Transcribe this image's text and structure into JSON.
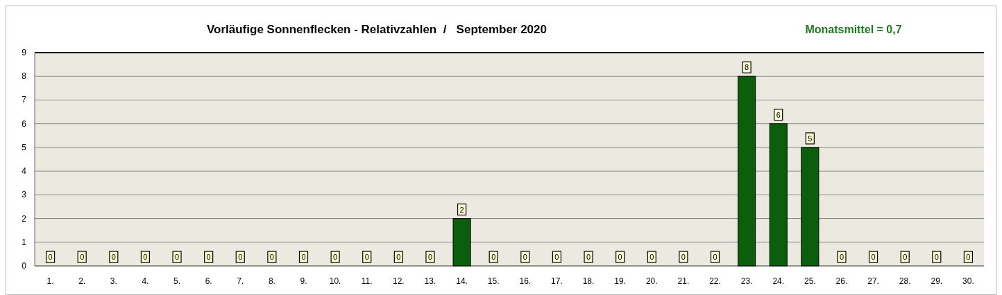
{
  "chart_data": {
    "type": "bar",
    "title": "Vorläufige Sonnenflecken - Relativzahlen  /   September 2020",
    "annotations": [
      "Monatsmittel = 0,7"
    ],
    "categories": [
      "1.",
      "2.",
      "3.",
      "4.",
      "5.",
      "6.",
      "7.",
      "8.",
      "9.",
      "10.",
      "11.",
      "12.",
      "13.",
      "14.",
      "15.",
      "16.",
      "17.",
      "18.",
      "19.",
      "20.",
      "21.",
      "22.",
      "23.",
      "24.",
      "25.",
      "26.",
      "27.",
      "28.",
      "29.",
      "30."
    ],
    "values": [
      0,
      0,
      0,
      0,
      0,
      0,
      0,
      0,
      0,
      0,
      0,
      0,
      0,
      2,
      0,
      0,
      0,
      0,
      0,
      0,
      0,
      0,
      8,
      6,
      5,
      0,
      0,
      0,
      0,
      0
    ],
    "color": "#0b5e0b",
    "ylim": [
      0,
      9
    ],
    "yticks": [
      0,
      1,
      2,
      3,
      4,
      5,
      6,
      7,
      8,
      9
    ],
    "grid": "y",
    "data_labels": true
  }
}
